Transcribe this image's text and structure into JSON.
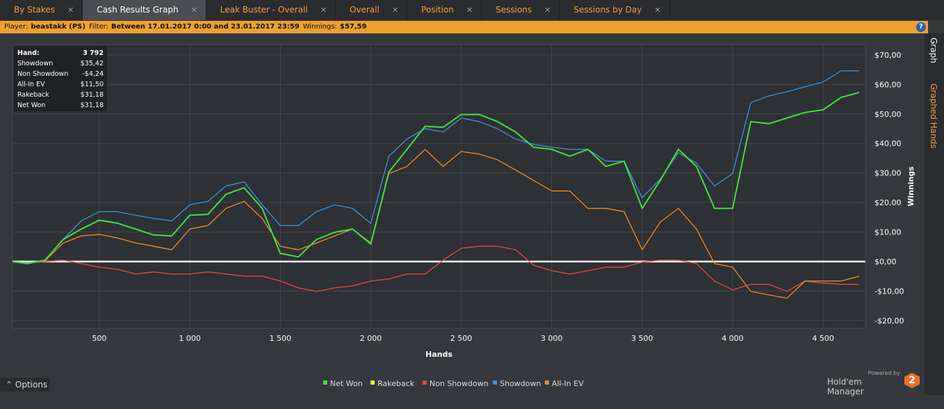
{
  "tabs": [
    {
      "label": "By Stakes",
      "active": false
    },
    {
      "label": "Cash Results Graph",
      "active": true
    },
    {
      "label": "Leak Buster - Overall",
      "active": false
    },
    {
      "label": "Overall",
      "active": false
    },
    {
      "label": "Position",
      "active": false
    },
    {
      "label": "Sessions",
      "active": false
    },
    {
      "label": "Sessions by Day",
      "active": false
    }
  ],
  "filter_bar": [
    {
      "label": "Player:",
      "value": "beastakk (PS)"
    },
    {
      "label": "Filter:",
      "value": "Between 17.01.2017 0:00 and 23.01.2017 23:59"
    },
    {
      "label": "Winnings:",
      "value": "$57,59"
    }
  ],
  "help_icon": "?",
  "side_tabs": [
    {
      "label": "Graph",
      "active": true
    },
    {
      "label": "Graphed Hands",
      "active": false
    }
  ],
  "stats": [
    {
      "label": "Hand:",
      "value": "3 792"
    },
    {
      "label": "Showdown",
      "value": "$35,42"
    },
    {
      "label": "Non Showdown",
      "value": "-$4,24"
    },
    {
      "label": "All-In EV",
      "value": "$11,50"
    },
    {
      "label": "Rakeback",
      "value": "$31,18"
    },
    {
      "label": "Net Won",
      "value": "$31,18"
    }
  ],
  "options_button": "Options",
  "branding": {
    "powered_by": "Powered by",
    "product": "Hold'em Manager",
    "logo": "2"
  },
  "chart_data": {
    "type": "line",
    "x_label": "Hands",
    "y_label": "Winnings",
    "x": [
      20,
      100,
      200,
      300,
      400,
      500,
      600,
      700,
      800,
      900,
      1000,
      1100,
      1200,
      1300,
      1400,
      1500,
      1600,
      1700,
      1800,
      1900,
      2000,
      2100,
      2200,
      2300,
      2400,
      2500,
      2600,
      2700,
      2800,
      2900,
      3000,
      3100,
      3200,
      3300,
      3400,
      3500,
      3600,
      3700,
      3800,
      3900,
      4000,
      4100,
      4200,
      4300,
      4400,
      4500,
      4600,
      4700
    ],
    "series": [
      {
        "name": "Net Won",
        "color": "#44dd44",
        "values": [
          0,
          -0.7,
          0.5,
          7.5,
          11,
          14,
          13,
          11,
          9,
          8.7,
          15.7,
          16,
          22.8,
          25,
          18,
          2.8,
          1.6,
          7.5,
          9.9,
          11,
          5.9,
          30.3,
          38,
          45.8,
          45.5,
          49.8,
          49.8,
          47.4,
          43.9,
          38.7,
          38,
          35.7,
          38,
          32.2,
          34,
          18,
          27.5,
          38,
          32.2,
          18,
          18,
          47.4,
          46.7,
          48.6,
          50.5,
          51.4,
          55.6,
          57.3
        ]
      },
      {
        "name": "Rakeback",
        "color": "#eeee33",
        "values": [
          null,
          null,
          null,
          null,
          null,
          null,
          null,
          null,
          null,
          null,
          null,
          null,
          null,
          null,
          null,
          null,
          null,
          null,
          null,
          null,
          null,
          null,
          null,
          null,
          null,
          null,
          null,
          null,
          null,
          null,
          null,
          null,
          null,
          null,
          null,
          null,
          null,
          null,
          null,
          null,
          null,
          null,
          null,
          null,
          null,
          null,
          null,
          null
        ]
      },
      {
        "name": "Non Showdown",
        "color": "#e04848",
        "values": [
          0,
          -0.5,
          0,
          0.5,
          -0.7,
          -1.9,
          -2.6,
          -4.2,
          -3.5,
          -4.2,
          -4.2,
          -3.5,
          -4.2,
          -4.9,
          -4.9,
          -6.6,
          -8.9,
          -10.1,
          -8.9,
          -8.2,
          -6.6,
          -5.9,
          -4.2,
          -4.2,
          0.5,
          4.5,
          5.2,
          5.2,
          4,
          -1.2,
          -3.1,
          -4.2,
          -3.1,
          -1.9,
          -1.9,
          -0.2,
          0.5,
          0.5,
          -0.7,
          -6.6,
          -9.6,
          -7.7,
          -7.7,
          -10.1,
          -6.6,
          -7.3,
          -7.7,
          -7.7
        ]
      },
      {
        "name": "Showdown",
        "color": "#3d8fd8",
        "values": [
          0,
          -0.5,
          0.5,
          7.5,
          13.8,
          16.9,
          16.9,
          15.7,
          14.6,
          13.8,
          19.2,
          20.4,
          25.6,
          27,
          19.2,
          12.2,
          12.2,
          16.9,
          19.2,
          18,
          12.9,
          35.7,
          41.5,
          45,
          43.9,
          48.6,
          47.4,
          45,
          41.5,
          39.7,
          38.7,
          38,
          38,
          34,
          34,
          21.6,
          27.9,
          36.9,
          33.3,
          25.6,
          29.8,
          53.8,
          56.1,
          57.5,
          59.2,
          60.8,
          64.6,
          64.6
        ]
      },
      {
        "name": "All-In EV",
        "color": "#e8882e",
        "values": [
          0,
          -0.5,
          0.3,
          6.3,
          8.7,
          9.2,
          8,
          6.3,
          5.2,
          4,
          11,
          12.2,
          18,
          20.4,
          14.6,
          5.2,
          4,
          6.3,
          8.7,
          11,
          6.3,
          29.8,
          32.2,
          38,
          32.2,
          37.3,
          36.4,
          34.5,
          31,
          27.5,
          23.9,
          23.9,
          18,
          18,
          16.9,
          4,
          13.4,
          18,
          11,
          -0.7,
          -1.9,
          -10.1,
          -11.3,
          -12.4,
          -6.6,
          -6.6,
          -6.6,
          -4.9
        ]
      }
    ],
    "xlim": [
      20,
      4734
    ],
    "ylim": [
      -22.6,
      73.5
    ],
    "xticks": [
      {
        "value": 500,
        "label": "500"
      },
      {
        "value": 1000,
        "label": "1 000"
      },
      {
        "value": 1500,
        "label": "1 500"
      },
      {
        "value": 2000,
        "label": "2 000"
      },
      {
        "value": 2500,
        "label": "2 500"
      },
      {
        "value": 3000,
        "label": "3 000"
      },
      {
        "value": 3500,
        "label": "3 500"
      },
      {
        "value": 4000,
        "label": "4 000"
      },
      {
        "value": 4500,
        "label": "4 500"
      }
    ],
    "yticks": [
      {
        "value": -20,
        "label": "-$20,00"
      },
      {
        "value": -10,
        "label": "-$10,00"
      },
      {
        "value": 0,
        "label": "$0,00"
      },
      {
        "value": 10,
        "label": "$10,00"
      },
      {
        "value": 20,
        "label": "$20,00"
      },
      {
        "value": 30,
        "label": "$30,00"
      },
      {
        "value": 40,
        "label": "$40,00"
      },
      {
        "value": 50,
        "label": "$50,00"
      },
      {
        "value": 60,
        "label": "$60,00"
      },
      {
        "value": 70,
        "label": "$70,00"
      }
    ],
    "grid": true
  }
}
